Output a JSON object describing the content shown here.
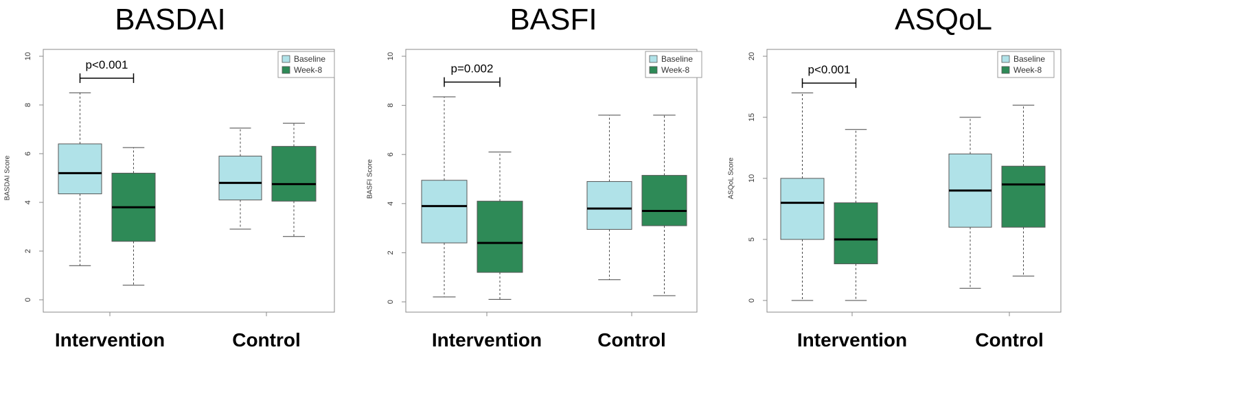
{
  "chart_data": [
    {
      "type": "box",
      "title": "BASDAI",
      "ylabel": "BASDAI Score",
      "ylim": [
        0,
        10
      ],
      "yticks": [
        "0",
        "2",
        "4",
        "6",
        "8",
        "10"
      ],
      "groups": [
        "Intervention",
        "Control"
      ],
      "legend": {
        "position": "top-right",
        "entries": [
          "Baseline",
          "Week-8"
        ]
      },
      "series": [
        {
          "name": "Baseline",
          "color": "#b0e2e8",
          "boxes": [
            {
              "group": "Intervention",
              "min": 1.4,
              "q1": 4.35,
              "median": 5.2,
              "q3": 6.4,
              "max": 8.5
            },
            {
              "group": "Control",
              "min": 2.9,
              "q1": 4.1,
              "median": 4.8,
              "q3": 5.9,
              "max": 7.05
            }
          ]
        },
        {
          "name": "Week-8",
          "color": "#2e8a57",
          "boxes": [
            {
              "group": "Intervention",
              "min": 0.6,
              "q1": 2.4,
              "median": 3.8,
              "q3": 5.2,
              "max": 6.25
            },
            {
              "group": "Control",
              "min": 2.6,
              "q1": 4.05,
              "median": 4.75,
              "q3": 6.3,
              "max": 7.25
            }
          ]
        }
      ],
      "annotation": {
        "text": "p<0.001",
        "group": "Intervention",
        "level": 9.1
      }
    },
    {
      "type": "box",
      "title": "BASFI",
      "ylabel": "BASFI Score",
      "ylim": [
        0,
        10
      ],
      "yticks": [
        "0",
        "2",
        "4",
        "6",
        "8",
        "10"
      ],
      "groups": [
        "Intervention",
        "Control"
      ],
      "legend": {
        "position": "top-right",
        "entries": [
          "Baseline",
          "Week-8"
        ]
      },
      "series": [
        {
          "name": "Baseline",
          "color": "#b0e2e8",
          "boxes": [
            {
              "group": "Intervention",
              "min": 0.2,
              "q1": 2.4,
              "median": 3.9,
              "q3": 4.95,
              "max": 8.35
            },
            {
              "group": "Control",
              "min": 0.9,
              "q1": 2.95,
              "median": 3.8,
              "q3": 4.9,
              "max": 7.6
            }
          ]
        },
        {
          "name": "Week-8",
          "color": "#2e8a57",
          "boxes": [
            {
              "group": "Intervention",
              "min": 0.1,
              "q1": 1.2,
              "median": 2.4,
              "q3": 4.1,
              "max": 6.1
            },
            {
              "group": "Control",
              "min": 0.25,
              "q1": 3.1,
              "median": 3.7,
              "q3": 5.15,
              "max": 7.6
            }
          ]
        }
      ],
      "annotation": {
        "text": "p=0.002",
        "group": "Intervention",
        "level": 8.95
      }
    },
    {
      "type": "box",
      "title": "ASQoL",
      "ylabel": "ASQoL Score",
      "ylim": [
        0,
        20
      ],
      "yticks": [
        "0",
        "5",
        "10",
        "15",
        "20"
      ],
      "groups": [
        "Intervention",
        "Control"
      ],
      "legend": {
        "position": "top-right",
        "entries": [
          "Baseline",
          "Week-8"
        ]
      },
      "series": [
        {
          "name": "Baseline",
          "color": "#b0e2e8",
          "boxes": [
            {
              "group": "Intervention",
              "min": 0,
              "q1": 5,
              "median": 8,
              "q3": 10,
              "max": 17
            },
            {
              "group": "Control",
              "min": 1,
              "q1": 6,
              "median": 9,
              "q3": 12,
              "max": 15
            }
          ]
        },
        {
          "name": "Week-8",
          "color": "#2e8a57",
          "boxes": [
            {
              "group": "Intervention",
              "min": 0,
              "q1": 3,
              "median": 5,
              "q3": 8,
              "max": 14
            },
            {
              "group": "Control",
              "min": 2,
              "q1": 6,
              "median": 9.5,
              "q3": 11,
              "max": 16
            }
          ]
        }
      ],
      "annotation": {
        "text": "p<0.001",
        "group": "Intervention",
        "level": 17.8
      }
    }
  ]
}
